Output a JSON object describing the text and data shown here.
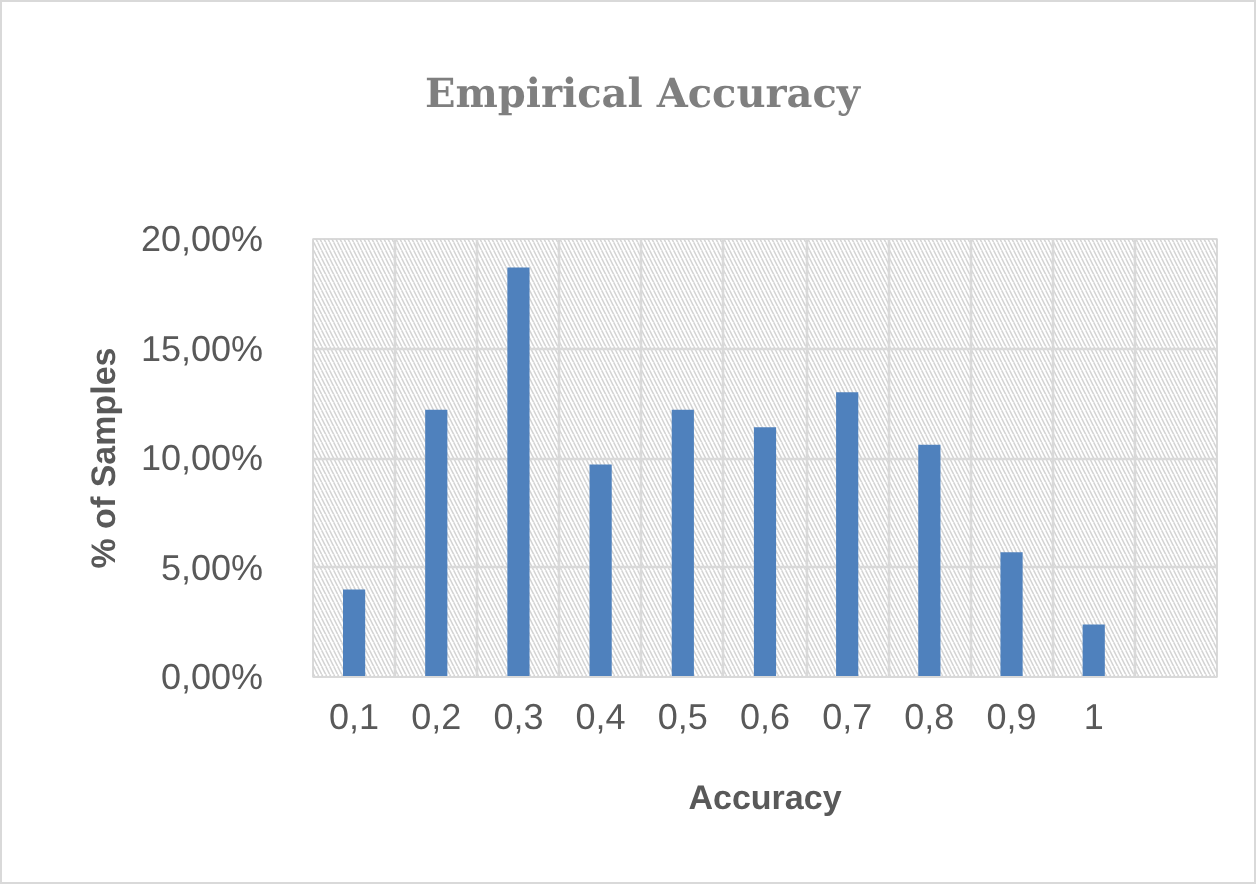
{
  "chart_data": {
    "type": "bar",
    "title": "Empirical Accuracy",
    "xlabel": "Accuracy",
    "ylabel": "% of Samples",
    "categories": [
      "0,1",
      "0,2",
      "0,3",
      "0,4",
      "0,5",
      "0,6",
      "0,7",
      "0,8",
      "0,9",
      "1",
      null
    ],
    "values": [
      4.0,
      12.2,
      18.7,
      9.7,
      12.2,
      11.4,
      13.0,
      10.6,
      5.7,
      2.4,
      null
    ],
    "color": "#4f81bd",
    "ylim": [
      0,
      20
    ],
    "yticks": [
      {
        "value": 0,
        "label": "0,00%"
      },
      {
        "value": 5,
        "label": "5,00%"
      },
      {
        "value": 10,
        "label": "10,00%"
      },
      {
        "value": 15,
        "label": "15,00%"
      },
      {
        "value": 20,
        "label": "20,00%"
      }
    ],
    "grid": true
  }
}
